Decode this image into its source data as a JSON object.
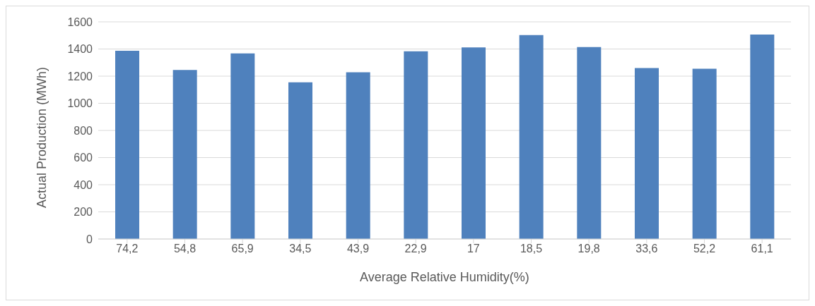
{
  "chart_data": {
    "type": "bar",
    "xlabel": "Average Relative Humidity(%)",
    "ylabel": "Actual Production (MWh)",
    "categories": [
      "74,2",
      "54,8",
      "65,9",
      "34,5",
      "43,9",
      "22,9",
      "17",
      "18,5",
      "19,8",
      "33,6",
      "52,2",
      "61,1"
    ],
    "values": [
      1387,
      1245,
      1368,
      1155,
      1228,
      1383,
      1412,
      1503,
      1414,
      1260,
      1254,
      1507
    ],
    "color": "#4f81bd",
    "ylim": [
      0,
      1600
    ],
    "yticks": [
      0,
      200,
      400,
      600,
      800,
      1000,
      1200,
      1400,
      1600
    ],
    "grid": "y"
  }
}
